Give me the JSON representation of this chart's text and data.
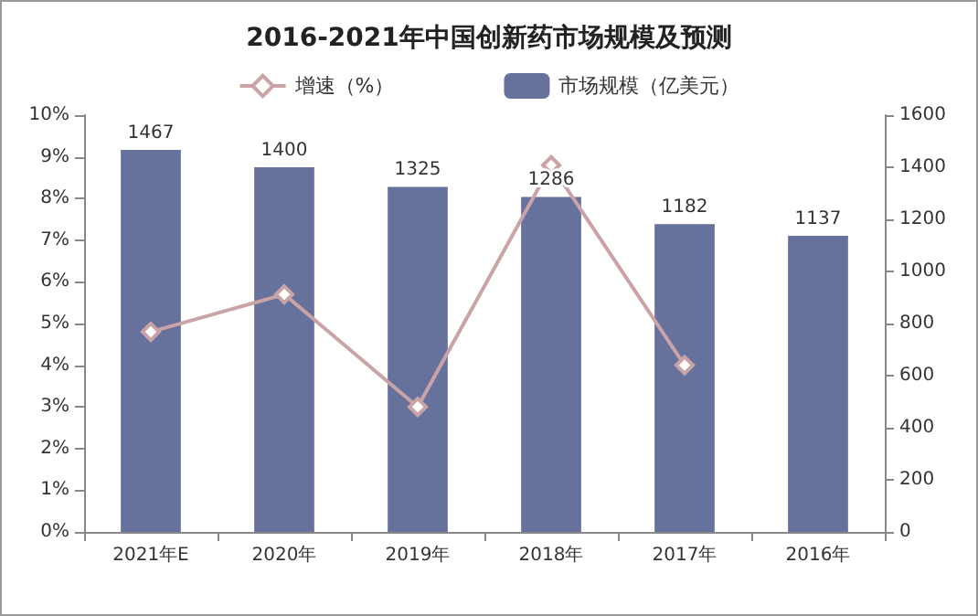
{
  "chart_data": {
    "type": "bar",
    "title": "2016-2021年中国创新药市场规模及预测",
    "categories": [
      "2021年E",
      "2020年",
      "2019年",
      "2018年",
      "2017年",
      "2016年"
    ],
    "series": [
      {
        "name": "增速（%）",
        "type": "line",
        "color": "#c9a3a6",
        "values": [
          4.8,
          5.7,
          3.0,
          8.8,
          4.0,
          null
        ],
        "marker": "diamond"
      },
      {
        "name": "市场规模（亿美元）",
        "axis": "y2",
        "color": "#66719c",
        "values": [
          1467,
          1400,
          1325,
          1286,
          1182,
          1137
        ],
        "value_labels": [
          "1467",
          "1400",
          "1325",
          "1286",
          "1182",
          "1137"
        ]
      }
    ],
    "ylim": [
      0,
      10
    ],
    "yticks": [
      {
        "value": 0,
        "label": "0%"
      },
      {
        "value": 1,
        "label": "1%"
      },
      {
        "value": 2,
        "label": "2%"
      },
      {
        "value": 3,
        "label": "3%"
      },
      {
        "value": 4,
        "label": "4%"
      },
      {
        "value": 5,
        "label": "5%"
      },
      {
        "value": 6,
        "label": "6%"
      },
      {
        "value": 7,
        "label": "7%"
      },
      {
        "value": 8,
        "label": "8%"
      },
      {
        "value": 9,
        "label": "9%"
      },
      {
        "value": 10,
        "label": "10%"
      }
    ],
    "y2lim": [
      0,
      1600
    ],
    "y2ticks": [
      0,
      200,
      400,
      600,
      800,
      1000,
      1200,
      1400,
      1600
    ],
    "legend": "top",
    "grid": false
  }
}
